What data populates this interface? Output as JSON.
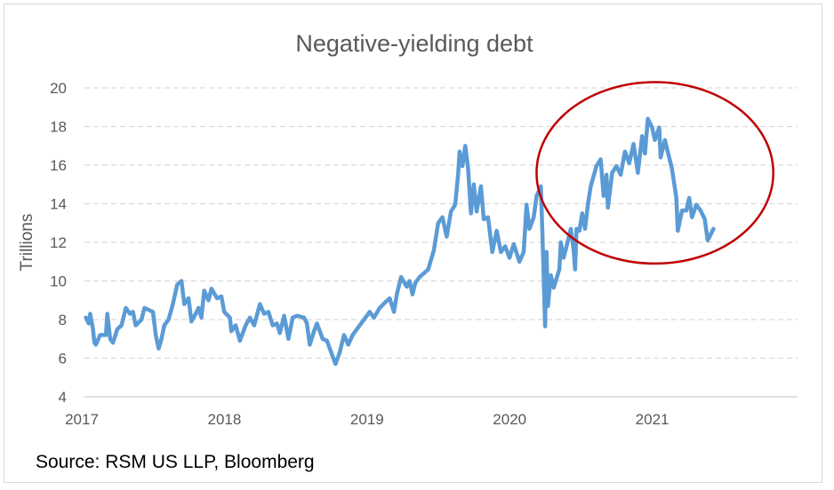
{
  "chart_data": {
    "type": "line",
    "title": "Negative-yielding debt",
    "xlabel": "",
    "ylabel": "Trillions",
    "xlim": [
      2017,
      2022
    ],
    "ylim": [
      4,
      20
    ],
    "x_ticks": [
      "2017",
      "2018",
      "2019",
      "2020",
      "2021"
    ],
    "y_ticks": [
      "4",
      "6",
      "8",
      "10",
      "12",
      "14",
      "16",
      "18",
      "20"
    ],
    "grid": "horizontal dashed",
    "series_color": "#5b9bd5",
    "annotation": {
      "shape": "ellipse",
      "color": "#c00000",
      "center": [
        2021.0,
        15.6
      ],
      "radius_x_years": 0.83,
      "radius_y_units": 4.7
    },
    "series": [
      {
        "x": [
          2017.01,
          2017.03,
          2017.04,
          2017.06,
          2017.07,
          2017.08,
          2017.11,
          2017.15,
          2017.16,
          2017.18,
          2017.2,
          2017.23,
          2017.26,
          2017.29,
          2017.32,
          2017.34,
          2017.36,
          2017.4,
          2017.42,
          2017.45,
          2017.48,
          2017.5,
          2017.52,
          2017.54,
          2017.56,
          2017.59,
          2017.62,
          2017.65,
          2017.68,
          2017.7,
          2017.73,
          2017.75,
          2017.78,
          2017.8,
          2017.82,
          2017.84,
          2017.87,
          2017.89,
          2017.93,
          2017.96,
          2017.98,
          2018.02,
          2018.03,
          2018.06,
          2018.09,
          2018.13,
          2018.16,
          2018.19,
          2018.23,
          2018.26,
          2018.29,
          2018.32,
          2018.35,
          2018.37,
          2018.4,
          2018.43,
          2018.46,
          2018.49,
          2018.54,
          2018.56,
          2018.58,
          2018.61,
          2018.63,
          2018.67,
          2018.7,
          2018.74,
          2018.76,
          2018.79,
          2018.82,
          2018.85,
          2018.88,
          2018.92,
          2018.96,
          2019.0,
          2019.03,
          2019.07,
          2019.11,
          2019.14,
          2019.17,
          2019.19,
          2019.22,
          2019.26,
          2019.28,
          2019.3,
          2019.32,
          2019.35,
          2019.38,
          2019.41,
          2019.45,
          2019.48,
          2019.51,
          2019.54,
          2019.57,
          2019.6,
          2019.62,
          2019.63,
          2019.65,
          2019.67,
          2019.69,
          2019.71,
          2019.73,
          2019.75,
          2019.78,
          2019.8,
          2019.83,
          2019.86,
          2019.89,
          2019.92,
          2019.95,
          2019.98,
          2020.01,
          2020.05,
          2020.08,
          2020.1,
          2020.12,
          2020.15,
          2020.17,
          2020.2,
          2020.21,
          2020.23,
          2020.24,
          2020.25,
          2020.27,
          2020.29,
          2020.33,
          2020.34,
          2020.36,
          2020.38,
          2020.41,
          2020.43,
          2020.44,
          2020.45,
          2020.47,
          2020.49,
          2020.51,
          2020.53,
          2020.55,
          2020.59,
          2020.62,
          2020.64,
          2020.66,
          2020.67,
          2020.7,
          2020.73,
          2020.76,
          2020.79,
          2020.82,
          2020.85,
          2020.88,
          2020.91,
          2020.93,
          2020.95,
          2020.98,
          2021.0,
          2021.03,
          2021.04,
          2021.07,
          2021.09,
          2021.12,
          2021.15,
          2021.16,
          2021.19,
          2021.22,
          2021.24,
          2021.26,
          2021.29,
          2021.32,
          2021.35,
          2021.37,
          2021.39,
          2021.41
        ],
        "y": [
          8.1,
          7.8,
          8.3,
          7.5,
          6.8,
          6.7,
          7.2,
          7.2,
          8.3,
          7.0,
          6.8,
          7.5,
          7.7,
          8.6,
          8.3,
          8.4,
          7.7,
          8.0,
          8.6,
          8.5,
          8.4,
          7.2,
          6.5,
          7.0,
          7.7,
          8.0,
          8.8,
          9.8,
          10.0,
          8.8,
          9.1,
          7.9,
          8.3,
          8.6,
          8.1,
          9.5,
          9.0,
          9.6,
          9.1,
          9.2,
          8.4,
          8.1,
          7.4,
          7.7,
          6.9,
          7.7,
          8.1,
          7.7,
          8.8,
          8.3,
          8.4,
          7.7,
          7.8,
          7.3,
          8.2,
          7.0,
          8.1,
          8.2,
          8.1,
          7.8,
          6.7,
          7.4,
          7.8,
          7.0,
          6.9,
          6.1,
          5.7,
          6.3,
          7.2,
          6.7,
          7.2,
          7.6,
          8.0,
          8.4,
          8.1,
          8.6,
          8.9,
          9.1,
          8.4,
          9.3,
          10.2,
          9.7,
          10.0,
          9.3,
          9.9,
          10.2,
          10.4,
          10.6,
          11.6,
          13.0,
          13.3,
          12.3,
          13.6,
          13.95,
          15.5,
          16.7,
          15.95,
          17.0,
          15.8,
          13.5,
          15.0,
          13.6,
          14.9,
          13.2,
          13.3,
          11.5,
          12.6,
          11.5,
          11.8,
          11.2,
          11.9,
          11.0,
          11.5,
          13.95,
          12.7,
          13.3,
          14.4,
          14.9,
          12.7,
          7.65,
          11.5,
          8.7,
          10.3,
          9.65,
          10.6,
          12.0,
          11.2,
          11.8,
          12.7,
          11.6,
          10.6,
          12.7,
          12.6,
          13.5,
          12.7,
          13.95,
          14.9,
          15.95,
          16.3,
          14.4,
          15.5,
          13.8,
          15.6,
          15.95,
          15.5,
          16.7,
          16.1,
          17.1,
          15.6,
          17.5,
          16.6,
          18.4,
          17.95,
          17.3,
          17.95,
          16.4,
          17.3,
          16.7,
          15.8,
          14.3,
          12.6,
          13.65,
          13.65,
          14.3,
          13.3,
          13.95,
          13.65,
          13.2,
          12.1,
          12.4,
          12.7
        ]
      }
    ]
  },
  "source": "Source: RSM US LLP, Bloomberg"
}
